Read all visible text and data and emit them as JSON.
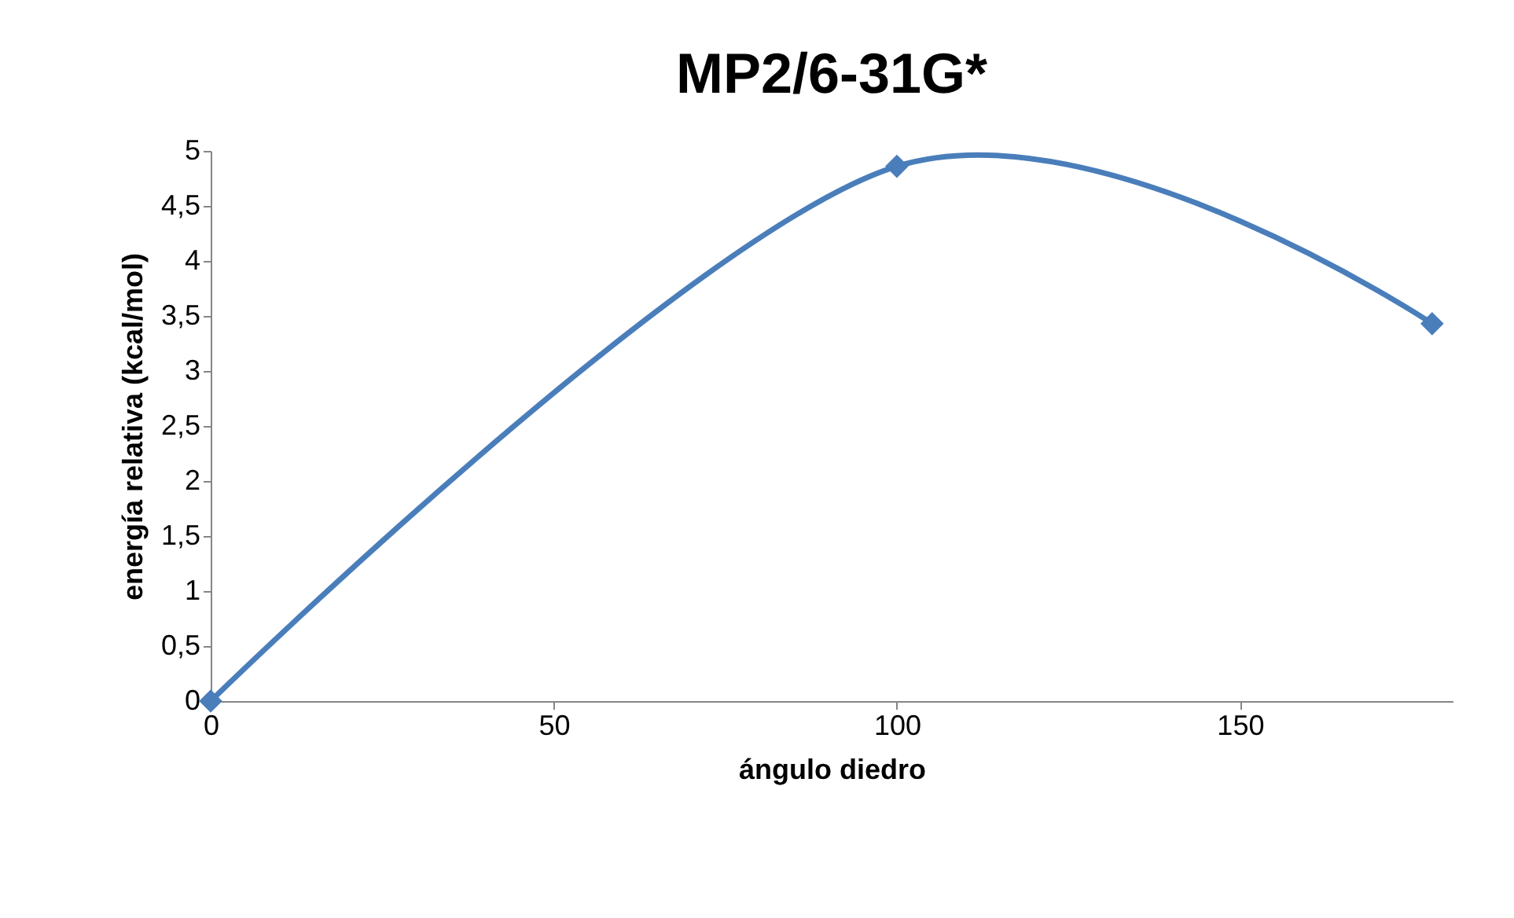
{
  "chart_data": {
    "type": "line",
    "title": "MP2/6-31G*",
    "xlabel": "ángulo diedro",
    "ylabel": "energía relativa (kcal/mol)",
    "x": [
      0,
      100,
      178
    ],
    "series": [
      {
        "color": "#4a7ebb",
        "values": [
          0,
          4.86,
          3.43
        ]
      }
    ],
    "xlim": [
      0,
      181
    ],
    "xticks": [
      0,
      50,
      100,
      150
    ],
    "ylim": [
      0,
      5
    ],
    "yticks": [
      0,
      {
        "value": 0.5,
        "label": "0,5"
      },
      1,
      {
        "value": 1.5,
        "label": "1,5"
      },
      2,
      {
        "value": 2.5,
        "label": "2,5"
      },
      3,
      {
        "value": 3.5,
        "label": "3,5"
      },
      4,
      {
        "value": 4.5,
        "label": "4,5"
      },
      5
    ],
    "grid": false,
    "marker": "diamond",
    "line_style": "solid"
  }
}
